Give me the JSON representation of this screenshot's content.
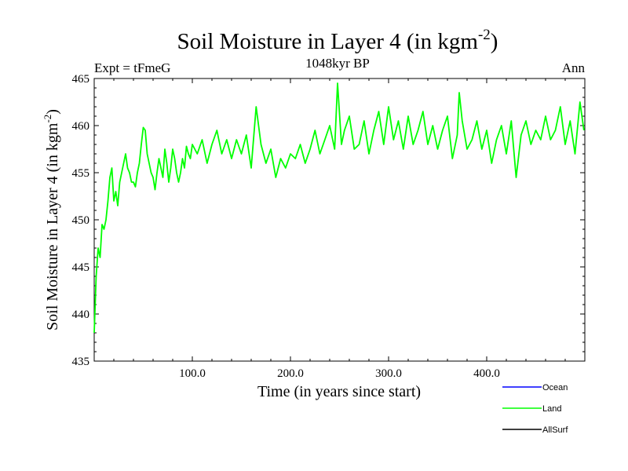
{
  "chart_data": {
    "type": "line",
    "title": "Soil Moisture in Layer 4 (in kgm",
    "title_sup": "-2",
    "title_close": ")",
    "subtitle_left": "Expt = tFmeG",
    "subtitle_center": "1048kyr BP",
    "subtitle_right": "Ann",
    "xlabel": "Time (in years since start)",
    "ylabel": "Soil Moisture in Layer 4 (in kgm",
    "ylabel_sup": "-2",
    "ylabel_close": ")",
    "xlim": [
      0,
      500
    ],
    "ylim": [
      435,
      465
    ],
    "xticks": [
      100,
      200,
      300,
      400
    ],
    "xtick_labels": [
      "100.0",
      "200.0",
      "300.0",
      "400.0"
    ],
    "yticks": [
      435,
      440,
      445,
      450,
      455,
      460,
      465
    ],
    "ytick_labels": [
      "435",
      "440",
      "445",
      "450",
      "455",
      "460",
      "465"
    ],
    "series": [
      {
        "name": "Land",
        "color": "#00ff00",
        "x": [
          0,
          2,
          4,
          6,
          8,
          10,
          12,
          14,
          16,
          18,
          20,
          22,
          24,
          26,
          28,
          30,
          32,
          34,
          36,
          38,
          40,
          42,
          44,
          46,
          48,
          50,
          52,
          54,
          56,
          58,
          60,
          62,
          64,
          66,
          68,
          70,
          72,
          74,
          76,
          78,
          80,
          82,
          84,
          86,
          88,
          90,
          92,
          94,
          96,
          98,
          100,
          105,
          110,
          115,
          120,
          125,
          130,
          135,
          140,
          145,
          150,
          155,
          160,
          165,
          170,
          175,
          180,
          185,
          190,
          195,
          200,
          205,
          210,
          215,
          220,
          225,
          230,
          235,
          240,
          245,
          248,
          252,
          255,
          260,
          265,
          270,
          275,
          280,
          285,
          290,
          295,
          300,
          305,
          310,
          315,
          320,
          325,
          330,
          335,
          340,
          345,
          350,
          355,
          360,
          365,
          370,
          372,
          375,
          380,
          385,
          390,
          395,
          400,
          405,
          410,
          415,
          420,
          425,
          430,
          435,
          440,
          445,
          450,
          455,
          460,
          465,
          470,
          475,
          480,
          485,
          490,
          495,
          499
        ],
        "values": [
          438,
          444,
          447,
          446,
          449.5,
          449,
          450,
          452,
          454.5,
          455.5,
          452,
          453,
          451.5,
          454,
          455,
          456,
          457,
          455.5,
          455,
          454,
          454,
          453.5,
          455,
          456,
          458,
          459.8,
          459.5,
          457,
          456,
          455,
          454.5,
          453.2,
          455,
          456.5,
          455.5,
          454.5,
          457.5,
          456,
          454,
          455.5,
          457.5,
          456.5,
          455,
          454,
          455,
          456.5,
          455.5,
          457.8,
          457,
          456.5,
          458,
          457,
          458.5,
          456,
          458,
          459.5,
          457,
          458.5,
          456.5,
          458.5,
          457,
          459,
          455.5,
          462,
          458,
          456,
          457.5,
          454.5,
          456.5,
          455.5,
          457,
          456.5,
          458,
          456,
          457.5,
          459.5,
          457,
          458.5,
          460,
          457.5,
          464.5,
          458,
          459.5,
          461,
          457.5,
          458,
          460.5,
          457,
          459.5,
          461.5,
          458,
          462,
          458.5,
          460.5,
          457.5,
          461,
          458,
          459.5,
          461.5,
          458,
          460,
          457.5,
          459.5,
          461,
          456.5,
          459,
          463.5,
          460.5,
          457.5,
          458.5,
          460.5,
          457.5,
          459.5,
          456,
          458.5,
          460,
          457,
          460.5,
          454.5,
          459,
          460.5,
          458,
          459.5,
          458.5,
          461,
          458.5,
          459.5,
          462,
          458,
          460.5,
          457,
          462.5,
          459.5
        ]
      }
    ],
    "legend": [
      {
        "label": "Ocean",
        "color": "#0000ff"
      },
      {
        "label": "Land",
        "color": "#00ff00"
      },
      {
        "label": "AllSurf",
        "color": "#000000"
      }
    ]
  }
}
